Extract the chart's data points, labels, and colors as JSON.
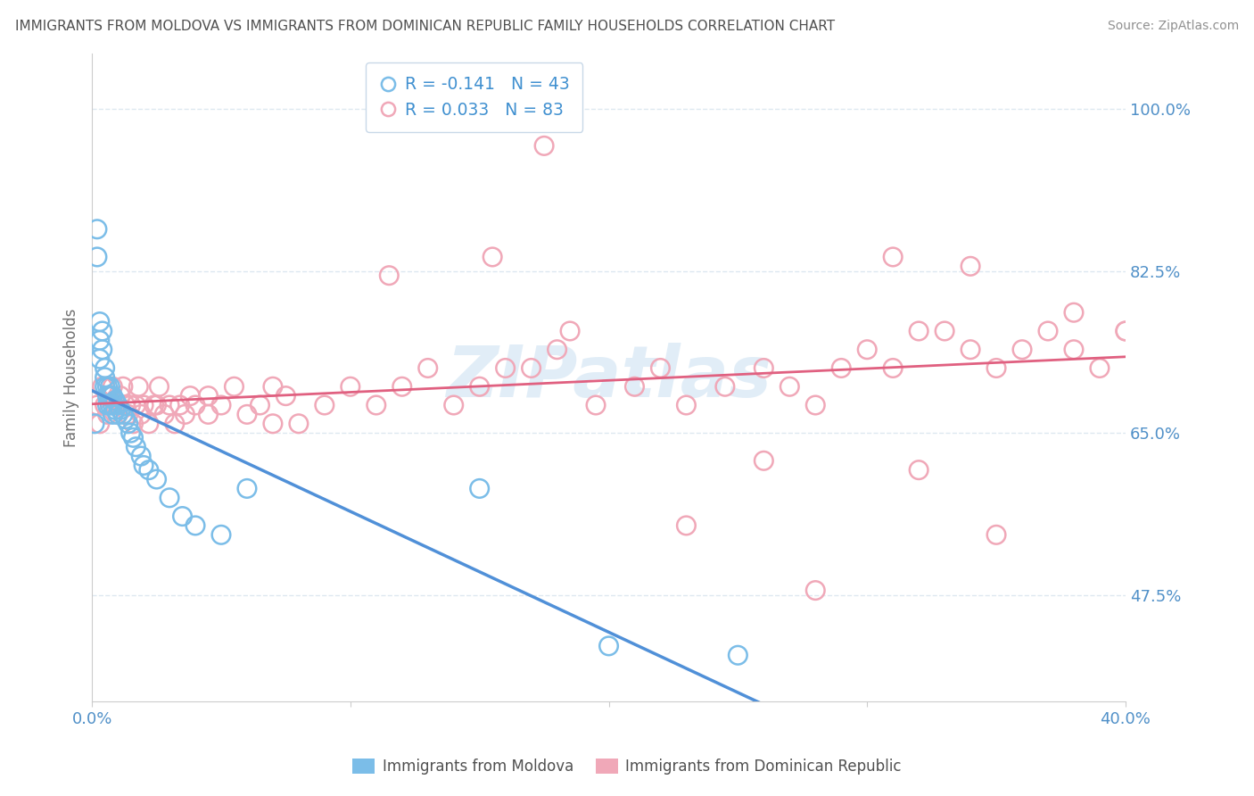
{
  "title": "IMMIGRANTS FROM MOLDOVA VS IMMIGRANTS FROM DOMINICAN REPUBLIC FAMILY HOUSEHOLDS CORRELATION CHART",
  "source": "Source: ZipAtlas.com",
  "ylabel": "Family Households",
  "yticks": [
    0.475,
    0.65,
    0.825,
    1.0
  ],
  "ytick_labels": [
    "47.5%",
    "65.0%",
    "82.5%",
    "100.0%"
  ],
  "xlim": [
    0.0,
    0.4
  ],
  "ylim": [
    0.36,
    1.06
  ],
  "moldova_R": -0.141,
  "moldova_N": 43,
  "dominican_R": 0.033,
  "dominican_N": 83,
  "moldova_color": "#7bbde8",
  "dominican_color": "#f0a8b8",
  "trendline_moldova_color": "#5090d8",
  "trendline_moldova_dash_color": "#90bce0",
  "trendline_dominican_color": "#e06080",
  "background_color": "#ffffff",
  "grid_color": "#dde8f0",
  "title_color": "#505050",
  "tick_color": "#5090c8",
  "moldova_x": [
    0.001,
    0.002,
    0.002,
    0.003,
    0.003,
    0.003,
    0.004,
    0.004,
    0.005,
    0.005,
    0.005,
    0.006,
    0.006,
    0.006,
    0.007,
    0.007,
    0.007,
    0.008,
    0.008,
    0.008,
    0.009,
    0.009,
    0.01,
    0.01,
    0.011,
    0.012,
    0.013,
    0.014,
    0.015,
    0.016,
    0.017,
    0.019,
    0.02,
    0.022,
    0.025,
    0.03,
    0.035,
    0.04,
    0.05,
    0.06,
    0.15,
    0.2,
    0.25
  ],
  "moldova_y": [
    0.66,
    0.87,
    0.84,
    0.77,
    0.75,
    0.73,
    0.76,
    0.74,
    0.72,
    0.71,
    0.7,
    0.7,
    0.69,
    0.68,
    0.7,
    0.69,
    0.68,
    0.69,
    0.68,
    0.67,
    0.685,
    0.675,
    0.68,
    0.67,
    0.675,
    0.67,
    0.665,
    0.66,
    0.65,
    0.645,
    0.635,
    0.625,
    0.615,
    0.61,
    0.6,
    0.58,
    0.56,
    0.55,
    0.54,
    0.59,
    0.59,
    0.42,
    0.41
  ],
  "dominican_x": [
    0.002,
    0.003,
    0.004,
    0.005,
    0.006,
    0.007,
    0.008,
    0.009,
    0.01,
    0.011,
    0.012,
    0.013,
    0.014,
    0.015,
    0.016,
    0.017,
    0.018,
    0.019,
    0.02,
    0.022,
    0.024,
    0.026,
    0.028,
    0.03,
    0.032,
    0.034,
    0.036,
    0.038,
    0.04,
    0.045,
    0.05,
    0.055,
    0.06,
    0.065,
    0.07,
    0.075,
    0.08,
    0.09,
    0.1,
    0.11,
    0.12,
    0.13,
    0.14,
    0.15,
    0.16,
    0.17,
    0.18,
    0.195,
    0.21,
    0.22,
    0.23,
    0.245,
    0.26,
    0.27,
    0.28,
    0.29,
    0.3,
    0.31,
    0.32,
    0.33,
    0.34,
    0.35,
    0.36,
    0.37,
    0.38,
    0.39,
    0.4,
    0.175,
    0.26,
    0.31,
    0.34,
    0.38,
    0.4,
    0.115,
    0.23,
    0.155,
    0.28,
    0.07,
    0.045,
    0.025,
    0.185,
    0.35,
    0.32
  ],
  "dominican_y": [
    0.68,
    0.66,
    0.7,
    0.68,
    0.67,
    0.69,
    0.7,
    0.68,
    0.67,
    0.69,
    0.7,
    0.68,
    0.67,
    0.68,
    0.66,
    0.68,
    0.7,
    0.67,
    0.68,
    0.66,
    0.68,
    0.7,
    0.67,
    0.68,
    0.66,
    0.68,
    0.67,
    0.69,
    0.68,
    0.67,
    0.68,
    0.7,
    0.67,
    0.68,
    0.7,
    0.69,
    0.66,
    0.68,
    0.7,
    0.68,
    0.7,
    0.72,
    0.68,
    0.7,
    0.72,
    0.72,
    0.74,
    0.68,
    0.7,
    0.72,
    0.68,
    0.7,
    0.72,
    0.7,
    0.68,
    0.72,
    0.74,
    0.72,
    0.76,
    0.76,
    0.74,
    0.72,
    0.74,
    0.76,
    0.74,
    0.72,
    0.76,
    0.96,
    0.62,
    0.84,
    0.83,
    0.78,
    0.76,
    0.82,
    0.55,
    0.84,
    0.48,
    0.66,
    0.69,
    0.68,
    0.76,
    0.54,
    0.61
  ]
}
